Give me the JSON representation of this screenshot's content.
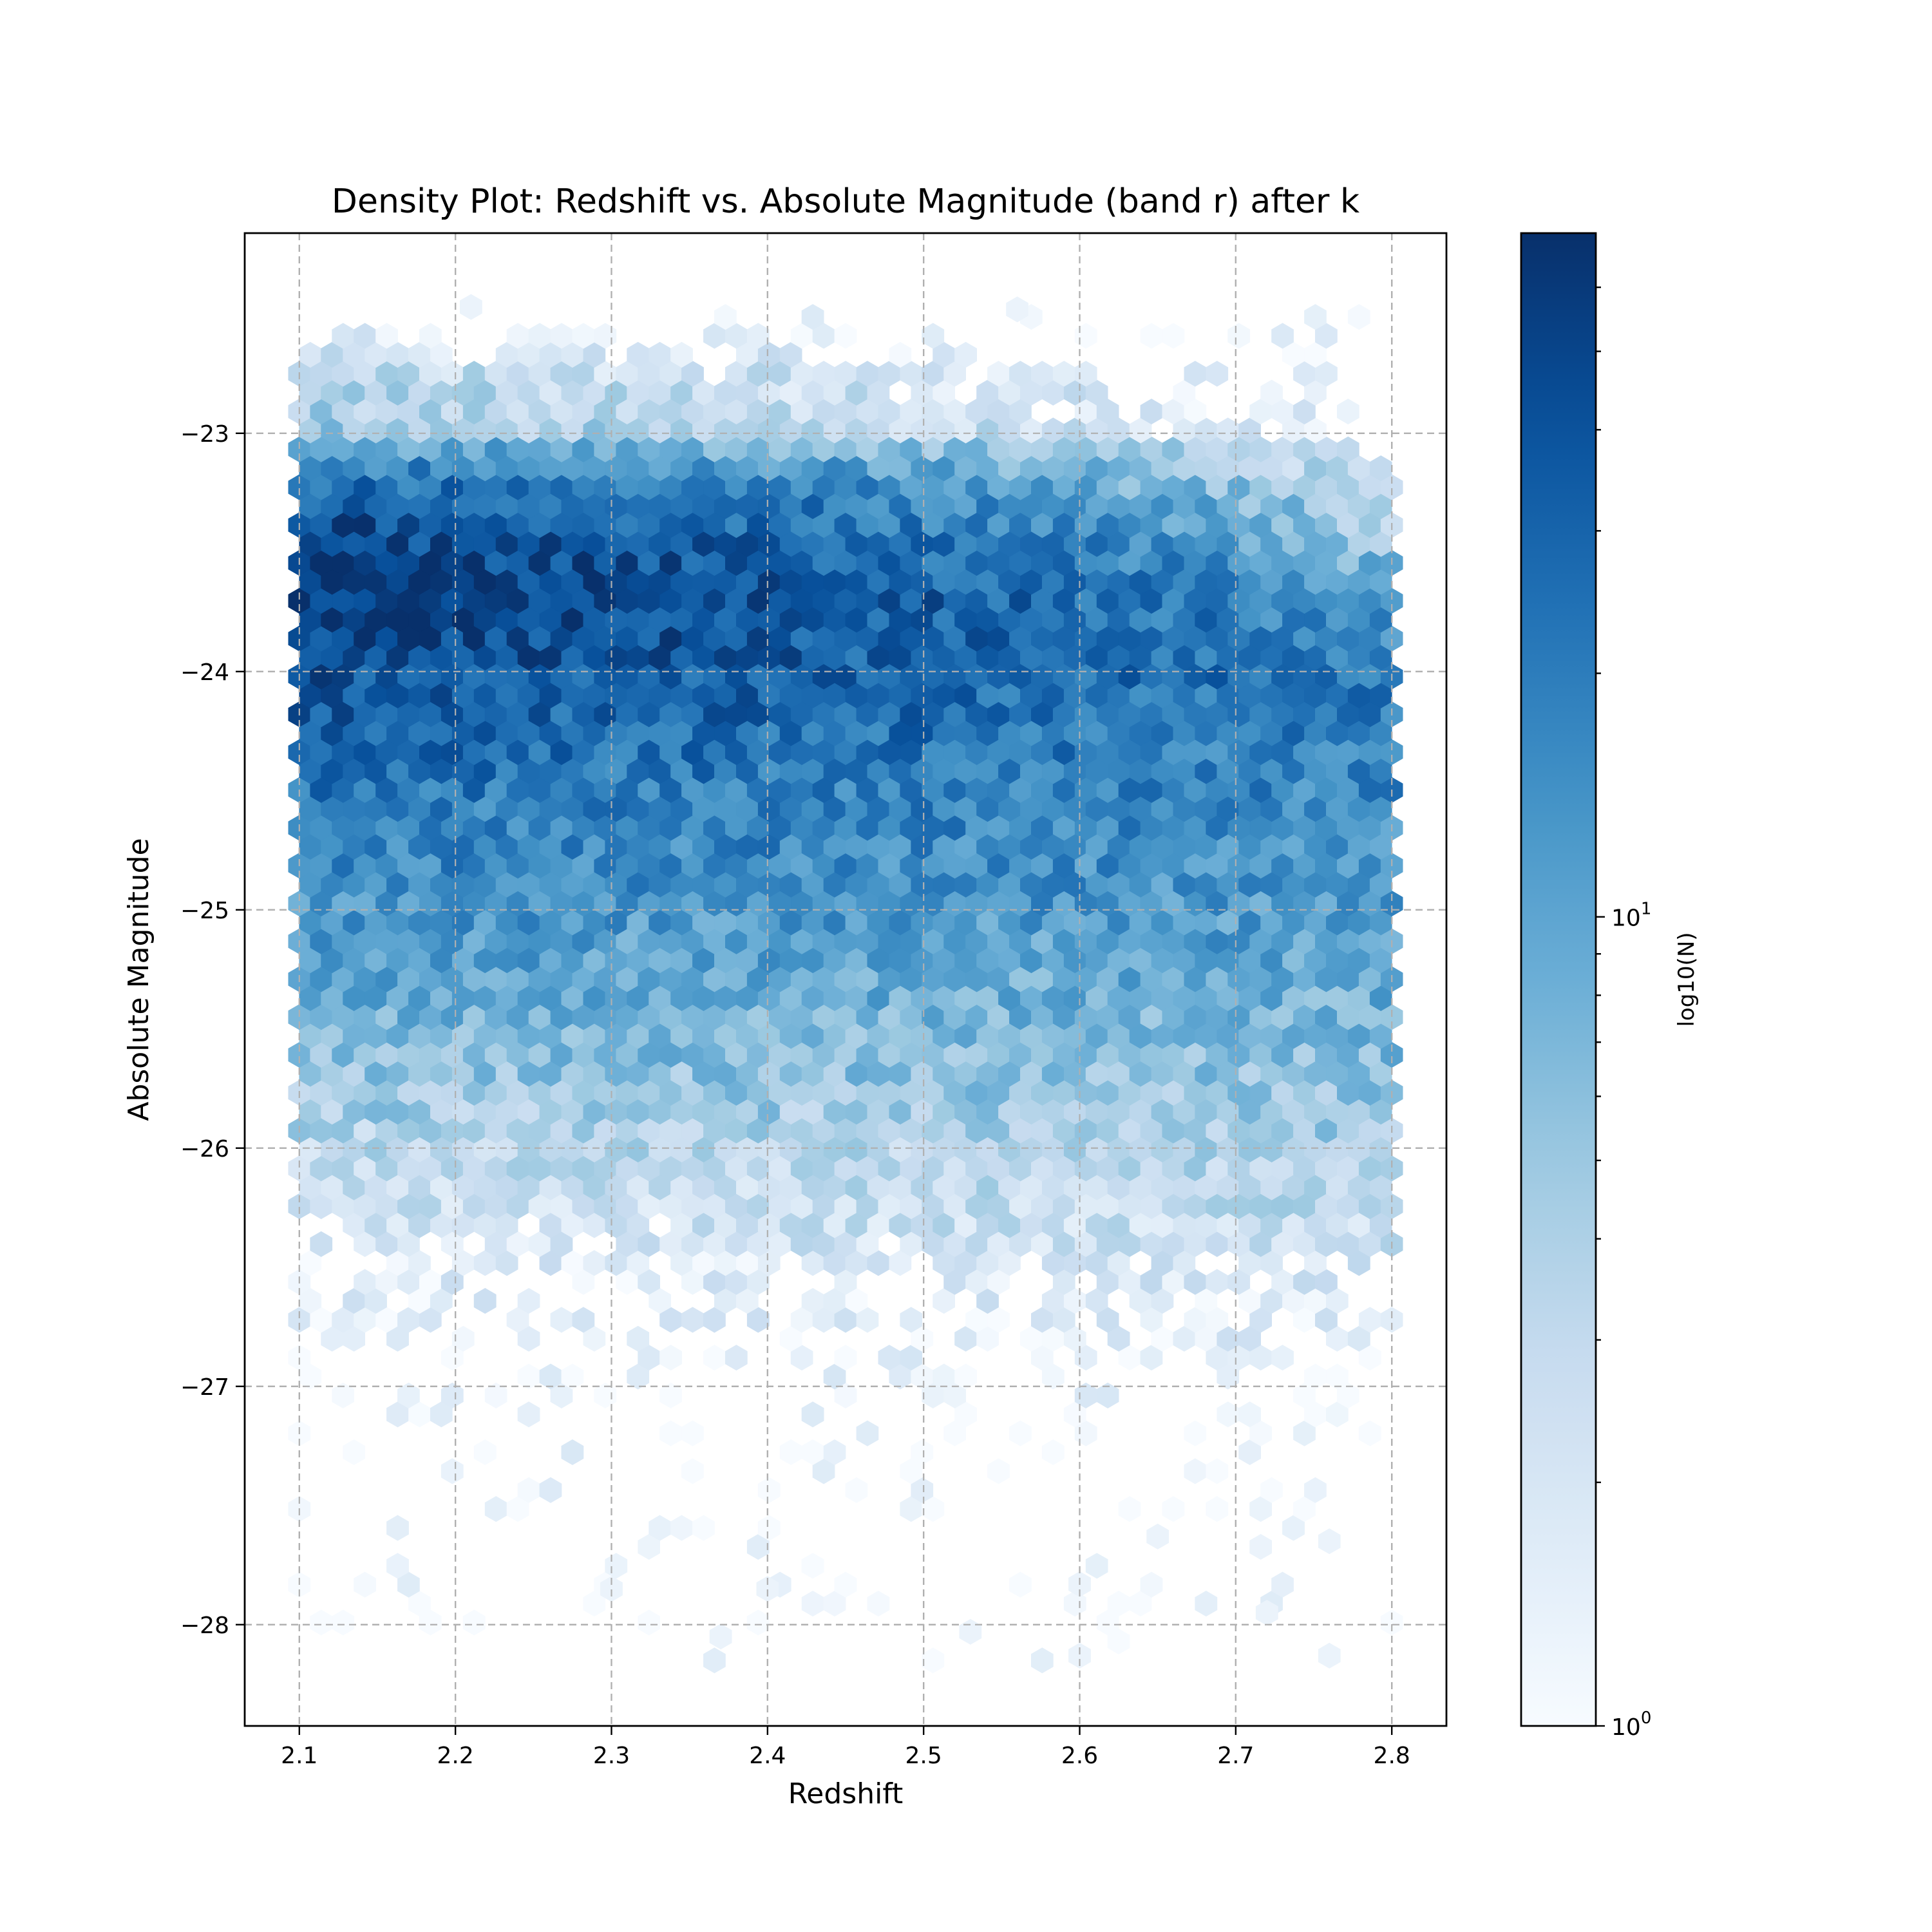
{
  "chart_data": {
    "type": "heatmap",
    "subtype": "hexbin",
    "title": "Density Plot: Redshift vs. Absolute Magnitude (band r) after k",
    "xlabel": "Redshift",
    "ylabel": "Absolute Magnitude",
    "xlim": [
      2.065,
      2.835
    ],
    "ylim": [
      -28.425,
      -22.16
    ],
    "x_ticks": [
      2.1,
      2.2,
      2.3,
      2.4,
      2.5,
      2.6,
      2.7,
      2.8
    ],
    "x_tick_labels": [
      "2.1",
      "2.2",
      "2.3",
      "2.4",
      "2.5",
      "2.6",
      "2.7",
      "2.8"
    ],
    "y_ticks": [
      -23,
      -24,
      -25,
      -26,
      -27,
      -28
    ],
    "y_tick_labels": [
      "−23",
      "−24",
      "−25",
      "−26",
      "−27",
      "−28"
    ],
    "grid": true,
    "colormap": "Blues",
    "colormap_stops": [
      "#f7fbff",
      "#deebf7",
      "#c6dbef",
      "#9ecae1",
      "#6baed6",
      "#4292c6",
      "#2171b5",
      "#08519c",
      "#08306b"
    ],
    "color_scale": "log",
    "colorbar": {
      "label": "log10(N)",
      "range": [
        1,
        70
      ],
      "tick_labels": [
        {
          "value": 1,
          "base": "10",
          "exp": "0"
        },
        {
          "value": 10,
          "base": "10",
          "exp": "1"
        }
      ],
      "placement": "right"
    },
    "bins": {
      "x_range": [
        2.1,
        2.8
      ],
      "y_range": [
        -28.15,
        -22.45
      ],
      "gridsize": 50
    },
    "density_profile": {
      "description_of_values": "count per hexagon as function of absolute magnitude (peak near -23.7, falling toward -27) and redshift (higher counts at low redshift)",
      "magnitude_anchor": [
        -22.5,
        -23.0,
        -23.4,
        -23.7,
        -24.0,
        -24.5,
        -25.0,
        -25.5,
        -26.0,
        -26.5,
        -27.0,
        -27.5,
        -28.2
      ],
      "count_at_low_redshift": [
        1,
        5,
        45,
        65,
        40,
        22,
        13,
        7,
        3,
        1.6,
        1.2,
        1.0,
        1.0
      ],
      "count_at_high_redshift": [
        1,
        1.3,
        3,
        10,
        22,
        16,
        12,
        7,
        4,
        2,
        1.2,
        1.0,
        1.0
      ],
      "sparse_outliers": [
        {
          "x": 2.21,
          "y": -22.47
        },
        {
          "x": 2.56,
          "y": -22.48
        },
        {
          "x": 2.3,
          "y": -27.85
        },
        {
          "x": 2.4,
          "y": -27.85
        },
        {
          "x": 2.6,
          "y": -27.83
        },
        {
          "x": 2.37,
          "y": -28.05
        },
        {
          "x": 2.53,
          "y": -28.03
        },
        {
          "x": 2.6,
          "y": -28.13
        },
        {
          "x": 2.76,
          "y": -28.13
        },
        {
          "x": 2.72,
          "y": -27.95
        },
        {
          "x": 2.65,
          "y": -27.63
        },
        {
          "x": 2.76,
          "y": -27.65
        }
      ]
    }
  }
}
